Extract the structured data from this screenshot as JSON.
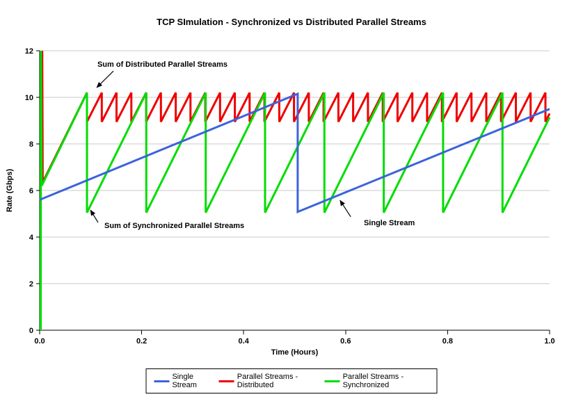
{
  "page": {
    "background": "#ffffff"
  },
  "chart_data": {
    "type": "line",
    "title": "TCP SImulation - Synchronized vs Distributed Parallel Streams",
    "xlabel": "Time (Hours)",
    "ylabel": "Rate (Gbps)",
    "xlim": [
      0,
      1
    ],
    "ylim": [
      0,
      12
    ],
    "xticks": [
      0,
      0.2,
      0.4,
      0.6,
      0.8,
      1.0
    ],
    "xtick_labels": [
      "0.0",
      "0.2",
      "0.4",
      "0.6",
      "0.8",
      "1.0"
    ],
    "yticks": [
      0,
      2,
      4,
      6,
      8,
      10,
      12
    ],
    "ytick_labels": [
      "0",
      "2",
      "4",
      "6",
      "8",
      "10",
      "12"
    ],
    "grid": true,
    "legend_position": "bottom-center",
    "colors": {
      "grid": "#c8c8c8",
      "axis": "#000000",
      "annotation": "#000000"
    },
    "series": [
      {
        "id": "single-stream",
        "name": "Single Stream",
        "color": "#3c63dc",
        "width": 3,
        "z": 3,
        "points": [
          [
            0,
            5.6
          ],
          [
            0.506,
            10.15
          ],
          [
            0.506,
            5.08
          ],
          [
            1.0,
            9.5
          ]
        ]
      },
      {
        "id": "parallel-distributed",
        "name": "Parallel Streams - Distributed",
        "color": "#ee0000",
        "width": 3,
        "z": 1,
        "pre_points": [
          [
            0.004,
            6.3
          ],
          [
            0.005,
            12
          ],
          [
            0.006,
            6.35
          ]
        ],
        "sawtooth": {
          "first_peak_t": 0.0928,
          "period": 0.029,
          "peak": 10.2,
          "valley": 8.95,
          "end_t": 1.0
        }
      },
      {
        "id": "parallel-synchronized",
        "name": "Parallel Streams - Synchronized",
        "color": "#00dd00",
        "width": 3,
        "z": 2,
        "pre_points": [
          [
            0.002,
            0
          ],
          [
            0.0025,
            12
          ],
          [
            0.004,
            6.2
          ]
        ],
        "sawtooth": {
          "first_peak_t": 0.0928,
          "period": 0.1164,
          "peak": 10.2,
          "valley": 5.05,
          "end_t": 1.0
        }
      }
    ],
    "annotations": [
      {
        "text": "Sum of Distributed Parallel Streams",
        "text_pos": [
          0.1132,
          11.58
        ],
        "arrow_from": [
          0.1446,
          11.13
        ],
        "arrow_to": [
          0.1119,
          10.42
        ]
      },
      {
        "text": "Sum of Synchronized Parallel Streams",
        "text_pos": [
          0.1269,
          4.66
        ],
        "arrow_from": [
          0.1146,
          4.63
        ],
        "arrow_to": [
          0.0996,
          5.16
        ]
      },
      {
        "text": "Single Stream",
        "text_pos": [
          0.6357,
          4.78
        ],
        "arrow_from": [
          0.61,
          4.87
        ],
        "arrow_to": [
          0.589,
          5.58
        ]
      }
    ]
  }
}
